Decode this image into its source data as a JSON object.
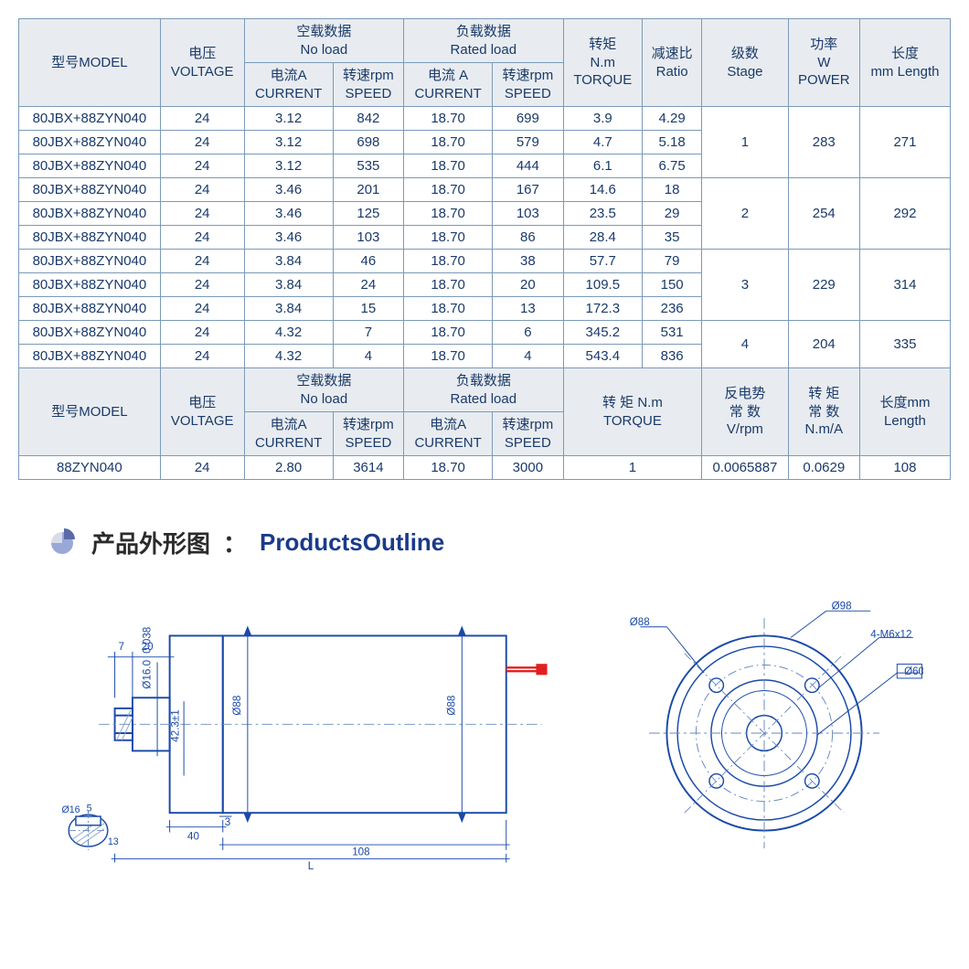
{
  "table1": {
    "headers": {
      "model_zh": "型号MODEL",
      "voltage_zh": "电压",
      "voltage_en": "VOLTAGE",
      "noload_zh": "空载数据",
      "noload_en": "No load",
      "rated_zh": "负载数据",
      "rated_en": "Rated load",
      "current_zh": "电流A",
      "current_en": "CURRENT",
      "speed_zh": "转速rpm",
      "speed_en": "SPEED",
      "current2_zh": "电流 A",
      "torque_zh": "转矩",
      "torque_unit": "N.m",
      "torque_en": "TORQUE",
      "ratio_zh": "减速比",
      "ratio_en": "Ratio",
      "stage_zh": "级数",
      "stage_en": "Stage",
      "power_zh": "功率",
      "power_unit": "W",
      "power_en": "POWER",
      "length_zh": "长度",
      "length_en": "mm Length"
    },
    "groups": [
      {
        "stage": "1",
        "power": "283",
        "length": "271",
        "rows": [
          {
            "model": "80JBX+88ZYN040",
            "v": "24",
            "nlc": "3.12",
            "nls": "842",
            "rlc": "18.70",
            "rls": "699",
            "tq": "3.9",
            "rt": "4.29"
          },
          {
            "model": "80JBX+88ZYN040",
            "v": "24",
            "nlc": "3.12",
            "nls": "698",
            "rlc": "18.70",
            "rls": "579",
            "tq": "4.7",
            "rt": "5.18"
          },
          {
            "model": "80JBX+88ZYN040",
            "v": "24",
            "nlc": "3.12",
            "nls": "535",
            "rlc": "18.70",
            "rls": "444",
            "tq": "6.1",
            "rt": "6.75"
          }
        ]
      },
      {
        "stage": "2",
        "power": "254",
        "length": "292",
        "rows": [
          {
            "model": "80JBX+88ZYN040",
            "v": "24",
            "nlc": "3.46",
            "nls": "201",
            "rlc": "18.70",
            "rls": "167",
            "tq": "14.6",
            "rt": "18"
          },
          {
            "model": "80JBX+88ZYN040",
            "v": "24",
            "nlc": "3.46",
            "nls": "125",
            "rlc": "18.70",
            "rls": "103",
            "tq": "23.5",
            "rt": "29"
          },
          {
            "model": "80JBX+88ZYN040",
            "v": "24",
            "nlc": "3.46",
            "nls": "103",
            "rlc": "18.70",
            "rls": "86",
            "tq": "28.4",
            "rt": "35"
          }
        ]
      },
      {
        "stage": "3",
        "power": "229",
        "length": "314",
        "rows": [
          {
            "model": "80JBX+88ZYN040",
            "v": "24",
            "nlc": "3.84",
            "nls": "46",
            "rlc": "18.70",
            "rls": "38",
            "tq": "57.7",
            "rt": "79"
          },
          {
            "model": "80JBX+88ZYN040",
            "v": "24",
            "nlc": "3.84",
            "nls": "24",
            "rlc": "18.70",
            "rls": "20",
            "tq": "109.5",
            "rt": "150"
          },
          {
            "model": "80JBX+88ZYN040",
            "v": "24",
            "nlc": "3.84",
            "nls": "15",
            "rlc": "18.70",
            "rls": "13",
            "tq": "172.3",
            "rt": "236"
          }
        ]
      },
      {
        "stage": "4",
        "power": "204",
        "length": "335",
        "rows": [
          {
            "model": "80JBX+88ZYN040",
            "v": "24",
            "nlc": "4.32",
            "nls": "7",
            "rlc": "18.70",
            "rls": "6",
            "tq": "345.2",
            "rt": "531"
          },
          {
            "model": "80JBX+88ZYN040",
            "v": "24",
            "nlc": "4.32",
            "nls": "4",
            "rlc": "18.70",
            "rls": "4",
            "tq": "543.4",
            "rt": "836"
          }
        ]
      }
    ]
  },
  "table2": {
    "headers": {
      "model_zh": "型号MODEL",
      "voltage_zh": "电压",
      "voltage_en": "VOLTAGE",
      "noload_zh": "空载数据",
      "noload_en": "No load",
      "rated_zh": "负载数据",
      "rated_en": "Rated load",
      "current_zh": "电流A",
      "current_en": "CURRENT",
      "speed_zh": "转速rpm",
      "speed_en": "SPEED",
      "torque_zh": "转 矩 N.m",
      "torque_en": "TORQUE",
      "emf_zh": "反电势",
      "emf_zh2": "常 数",
      "emf_unit": "V/rpm",
      "tc_zh": "转 矩",
      "tc_zh2": "常 数",
      "tc_unit": "N.m/A",
      "length_zh": "长度mm",
      "length_en": "Length"
    },
    "row": {
      "model": "88ZYN040",
      "v": "24",
      "nlc": "2.80",
      "nls": "3614",
      "rlc": "18.70",
      "rls": "3000",
      "tq": "1",
      "emf": "0.0065887",
      "tc": "0.0629",
      "len": "108"
    }
  },
  "section": {
    "title_zh": "产品外形图",
    "colon": "：",
    "title_en": "ProductsOutline"
  },
  "drawing": {
    "dims": {
      "d16": "Ø16.0",
      "d16tol": "0.038",
      "d88": "Ø88",
      "d88b": "Ø88",
      "t7": "7",
      "t20": "20",
      "t42": "42.3±1",
      "t40": "40",
      "t3": "3",
      "t108": "108",
      "tL": "L",
      "key16": "Ø16",
      "key5": "5",
      "key13": "13",
      "ring88": "Ø88",
      "ring98": "Ø98",
      "ring60": "Ø60",
      "ring_holes": "4-M6x12"
    },
    "colors": {
      "line": "#1a4aa8",
      "thin": "#6a8ac0",
      "wire": "#e02020",
      "hatch": "#8aa8d0"
    }
  }
}
